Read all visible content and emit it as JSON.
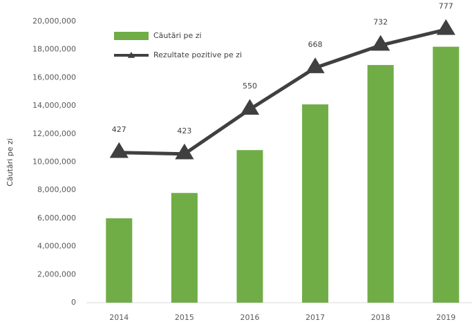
{
  "chart_data": {
    "type": "bar-line",
    "y_axis_label": "Căutări pe zi",
    "categories": [
      "2014",
      "2015",
      "2016",
      "2017",
      "2018",
      "2019"
    ],
    "series": [
      {
        "name": "Căutări pe zi",
        "type": "bar",
        "color": "#70ad47",
        "values": [
          6000000,
          7800000,
          10850000,
          14100000,
          16900000,
          18200000
        ]
      },
      {
        "name": "Rezultate pozitive pe zi",
        "type": "line",
        "axis": "y2",
        "color": "#404040",
        "marker": "triangle",
        "values": [
          427,
          423,
          550,
          668,
          732,
          777
        ]
      }
    ],
    "ylim": [
      0,
      20000000
    ],
    "yticks": [
      0,
      {
        "value": 2000000,
        "label": "2,000,000"
      },
      {
        "value": 4000000,
        "label": "4,000,000"
      },
      {
        "value": 6000000,
        "label": "6,000,000"
      },
      {
        "value": 8000000,
        "label": "8,000,000"
      },
      {
        "value": 10000000,
        "label": "10,000,000"
      },
      {
        "value": 12000000,
        "label": "12,000,000"
      },
      {
        "value": 14000000,
        "label": "14,000,000"
      },
      {
        "value": 16000000,
        "label": "16,000,000"
      },
      {
        "value": 18000000,
        "label": "18,000,000"
      },
      {
        "value": 20000000,
        "label": "20,000,000"
      }
    ],
    "y2lim": [
      0,
      800
    ],
    "grid": false,
    "legend": "top-left"
  }
}
